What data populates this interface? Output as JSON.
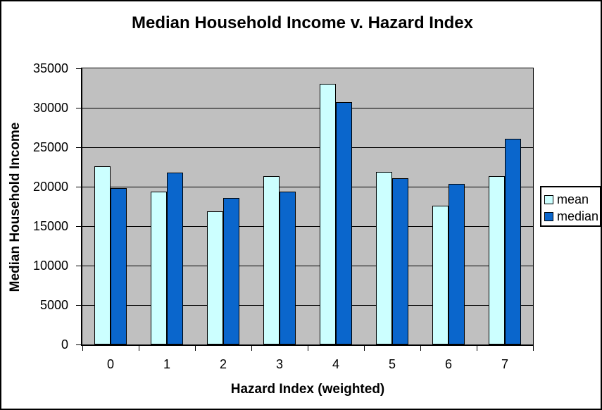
{
  "window": {
    "background": "#FFFFFF",
    "frame_border": "#000000"
  },
  "chart_data": {
    "type": "bar",
    "title": "Median Household Income v. Hazard Index",
    "xlabel": "Hazard Index (weighted)",
    "ylabel": "Median Household Income",
    "categories": [
      "0",
      "1",
      "2",
      "3",
      "4",
      "5",
      "6",
      "7"
    ],
    "series": [
      {
        "name": "mean",
        "color": "#CCFFFF",
        "values": [
          22600,
          19400,
          16900,
          21300,
          33000,
          21900,
          17600,
          21300
        ]
      },
      {
        "name": "median",
        "color": "#0A66CC",
        "values": [
          19800,
          21800,
          18600,
          19400,
          30700,
          21100,
          20400,
          26100
        ]
      }
    ],
    "ylim": [
      0,
      35000
    ],
    "ytick_step": 5000,
    "yticks": [
      "0",
      "5000",
      "10000",
      "15000",
      "20000",
      "25000",
      "30000",
      "35000"
    ],
    "grid": true,
    "legend_position": "right",
    "plot_bg": "#C0C0C0",
    "gridline_color": "#000000",
    "bar_border_color": "#000000"
  }
}
